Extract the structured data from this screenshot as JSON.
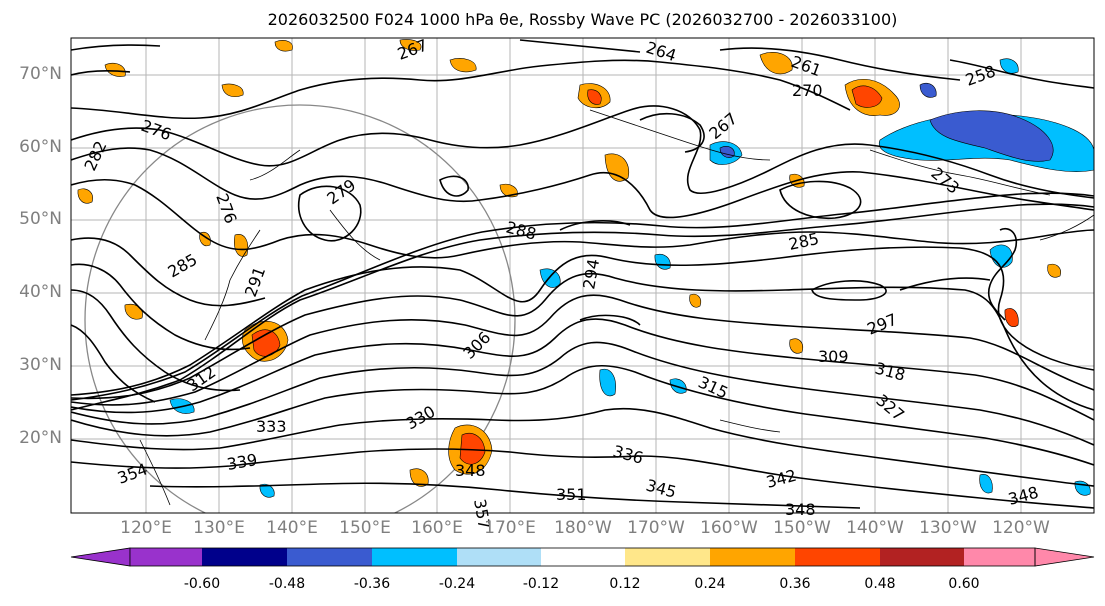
{
  "title": "2026032500 F024 1000 hPa θe, Rossby Wave PC (2026032700 - 2026033100)",
  "lat_labels": [
    "70°N",
    "60°N",
    "50°N",
    "40°N",
    "30°N",
    "20°N"
  ],
  "lon_labels": [
    "120°E",
    "130°E",
    "140°E",
    "150°E",
    "160°E",
    "170°E",
    "180°W",
    "170°W",
    "160°W",
    "150°W",
    "140°W",
    "130°W",
    "120°W"
  ],
  "colorbar": {
    "ticks": [
      "-0.60",
      "-0.48",
      "-0.36",
      "-0.24",
      "-0.12",
      "0.12",
      "0.24",
      "0.36",
      "0.48",
      "0.60"
    ],
    "colors": [
      "#9932cc",
      "#00008b",
      "#3a5bd0",
      "#00bfff",
      "#afdff7",
      "#ffffff",
      "#ffe78a",
      "#ffa500",
      "#ff4500",
      "#b22222",
      "#ff88aa"
    ]
  },
  "contour_labels": [
    "264",
    "261",
    "258",
    "270",
    "267",
    "276",
    "282",
    "279",
    "285",
    "288",
    "294",
    "291",
    "285",
    "297",
    "309",
    "318",
    "306",
    "315",
    "327",
    "312",
    "333",
    "330",
    "336",
    "345",
    "342",
    "339",
    "348",
    "351",
    "354",
    "348",
    "357",
    "276",
    "267",
    "273",
    "348"
  ]
}
